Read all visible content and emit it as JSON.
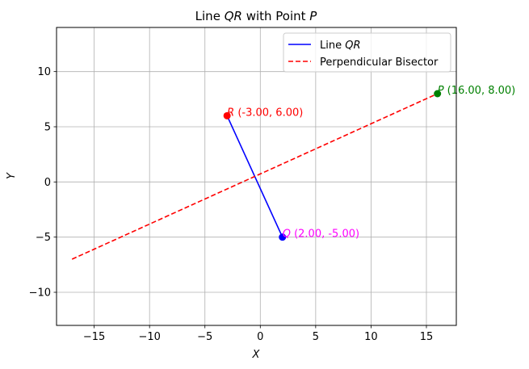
{
  "chart_data": {
    "type": "line",
    "title": "Line QR with Point P",
    "title_parts": {
      "pre": "Line ",
      "line_name": "QR",
      "mid": " with Point ",
      "point_name": "P"
    },
    "xlabel": "X",
    "ylabel": "Y",
    "xlim": [
      -18.4,
      17.7
    ],
    "ylim": [
      -13.0,
      14.0
    ],
    "xticks": [
      -15,
      -10,
      -5,
      0,
      5,
      10,
      15
    ],
    "yticks": [
      -10,
      -5,
      0,
      5,
      10
    ],
    "xtick_labels": [
      "−15",
      "−10",
      "−5",
      "0",
      "5",
      "10",
      "15"
    ],
    "ytick_labels": [
      "−10",
      "−5",
      "0",
      "5",
      "10"
    ],
    "grid": true,
    "legend_position": "top-right",
    "series": [
      {
        "name": "Line QR",
        "legend_pre": "Line ",
        "legend_italic": "QR",
        "style": "solid",
        "color": "#0000ff",
        "x": [
          2,
          -3
        ],
        "y": [
          -5,
          6
        ]
      },
      {
        "name": "Perpendicular Bisector",
        "style": "dashed",
        "color": "#ff0000",
        "x": [
          -17,
          16
        ],
        "y": [
          -7,
          8
        ]
      }
    ],
    "points": [
      {
        "name": "R",
        "x": -3,
        "y": 6,
        "label": " (-3.00, 6.00)",
        "color": "#ff0000"
      },
      {
        "name": "Q",
        "x": 2,
        "y": -5,
        "label": " (2.00, -5.00)",
        "color": "#0000ff",
        "label_color": "#ff00ff"
      },
      {
        "name": "P",
        "x": 16,
        "y": 8,
        "label": " (16.00, 8.00)",
        "color": "#008000"
      }
    ]
  }
}
